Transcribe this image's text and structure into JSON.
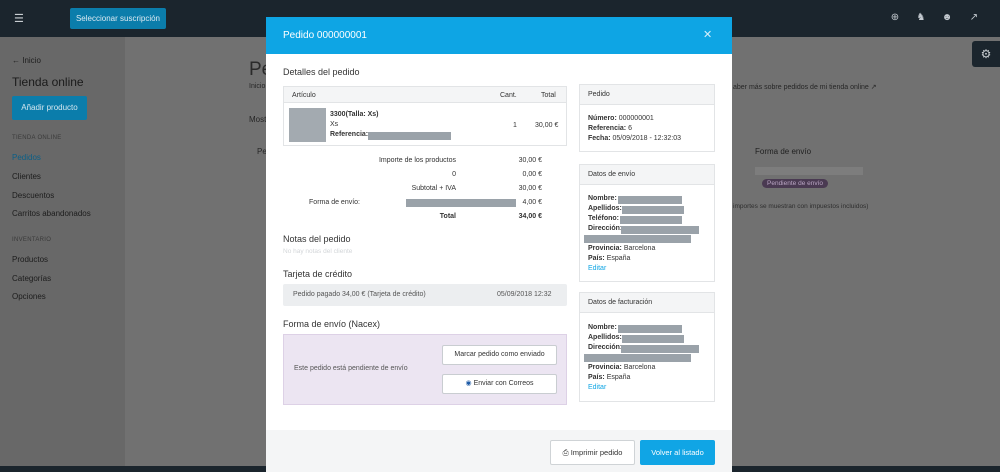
{
  "topbar": {
    "subscribe_label": "Seleccionar suscripción",
    "icons": [
      "menu-icon",
      "plus-circle-icon",
      "bell-icon",
      "user-icon",
      "external-arrow-icon"
    ]
  },
  "sidebar": {
    "back_label": "Inicio",
    "store_title": "Tienda online",
    "add_product_label": "Añadir producto",
    "section_store": "TIENDA ONLINE",
    "store_items": [
      "Pedidos",
      "Clientes",
      "Descuentos",
      "Carritos abandonados"
    ],
    "section_inventory": "INVENTARIO",
    "inventory_items": [
      "Productos",
      "Categorías",
      "Opciones"
    ]
  },
  "background": {
    "page_title": "Pedi",
    "breadcrumb": "Inicio",
    "show_label": "Most",
    "col_ped": "Ped",
    "learn_more": "aber más sobre pedidos de mi tienda online",
    "col_shipping": "Forma de envío",
    "status_badge": "Pendiente de envío",
    "tax_note": "importes se muestran con impuestos incluidos)"
  },
  "modal": {
    "title": "Pedido 000000001",
    "details_heading": "Detalles del pedido",
    "table": {
      "col_article": "Artículo",
      "col_qty": "Cant.",
      "col_total": "Total",
      "row": {
        "name": "3300(Talla: Xs)",
        "size": "Xs",
        "ref_label": "Referencia:",
        "qty": "1",
        "total": "30,00 €"
      }
    },
    "totals": [
      {
        "label": "Importe de los productos",
        "value": "30,00 €"
      },
      {
        "label": "0",
        "value": "0,00 €"
      },
      {
        "label": "Subtotal + IVA",
        "value": "30,00 €"
      },
      {
        "label": "Forma de envío:",
        "value": "4,00 €"
      },
      {
        "label": "Total",
        "value": "34,00 €"
      }
    ],
    "notes_heading": "Notas del pedido",
    "notes_empty": "No hay notas del cliente",
    "card_heading": "Tarjeta de crédito",
    "card_payment": "Pedido pagado 34,00 € (Tarjeta de crédito)",
    "card_date": "05/09/2018 12:32",
    "shipping_heading": "Forma de envío (Nacex)",
    "shipping_pending": "Este pedido está pendiente de envío",
    "mark_sent_label": "Marcar pedido como enviado",
    "send_correos_label": "Enviar con Correos",
    "order_box": {
      "title": "Pedido",
      "number_label": "Número:",
      "number": "000000001",
      "ref_label": "Referencia:",
      "ref": "6",
      "date_label": "Fecha:",
      "date": "05/09/2018 - 12:32:03"
    },
    "shipping_box": {
      "title": "Datos de envío",
      "name_label": "Nombre:",
      "surname_label": "Apellidos:",
      "phone_label": "Teléfono:",
      "address_label": "Dirección:",
      "province_label": "Provincia:",
      "province": "Barcelona",
      "country_label": "País:",
      "country": "España",
      "edit_label": "Editar"
    },
    "billing_box": {
      "title": "Datos de facturación",
      "name_label": "Nombre:",
      "surname_label": "Apellidos:",
      "address_label": "Dirección:",
      "province_label": "Provincia:",
      "province": "Barcelona",
      "country_label": "País:",
      "country": "España",
      "edit_label": "Editar"
    },
    "print_label": "Imprimir pedido",
    "back_label": "Volver al listado"
  },
  "colors": {
    "accent": "#0ea5e4",
    "topbar": "#1b252d",
    "pending_bg": "#ece5f2"
  }
}
